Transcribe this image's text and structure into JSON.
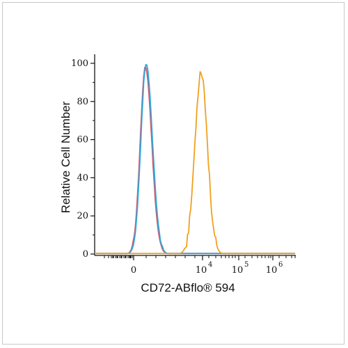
{
  "chart_data": {
    "type": "line",
    "xlabel": "CD72-ABflo® 594",
    "ylabel": "Relative Cell Number",
    "xscale": "biexponential (log-like)",
    "ylim": [
      0,
      100
    ],
    "y_ticks": [
      "0",
      "20",
      "40",
      "60",
      "80",
      "100"
    ],
    "x_ticks": [
      {
        "base": "0",
        "exp": ""
      },
      {
        "base": "10",
        "exp": "4"
      },
      {
        "base": "10",
        "exp": "5"
      },
      {
        "base": "10",
        "exp": "6"
      }
    ],
    "grid": false,
    "colors": {
      "red": "#d05a6e",
      "blue": "#30a8d8",
      "orange": "#f0a020"
    },
    "series": [
      {
        "color": "#d05a6e",
        "peak_x": "≈800",
        "peak_y": 98
      },
      {
        "color": "#30a8d8",
        "peak_x": "≈800",
        "peak_y": 100
      },
      {
        "color": "#f0a020",
        "peak_x": "≈1.2×10^4",
        "peak_y": 96
      }
    ]
  }
}
